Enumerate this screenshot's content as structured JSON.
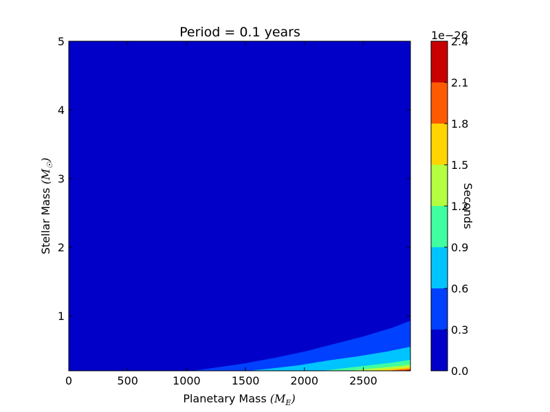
{
  "chart_data": {
    "type": "heatmap",
    "title": "Period = 0.1 years",
    "xlabel": {
      "text": "Planetary Mass ",
      "math": "(M",
      "sub": "E",
      "close": ")"
    },
    "ylabel": {
      "text": "Stellar Mass ",
      "math": "(M",
      "sub": "☉",
      "close": ")"
    },
    "xlim": [
      0,
      2900
    ],
    "ylim": [
      0.2,
      5
    ],
    "xticks": [
      0,
      500,
      1000,
      1500,
      2000,
      2500
    ],
    "xtick_labels": [
      "0",
      "500",
      "1000",
      "1500",
      "2000",
      "2500"
    ],
    "yticks": [
      1,
      2,
      3,
      4,
      5
    ],
    "ytick_labels": [
      "1",
      "2",
      "3",
      "4",
      "5"
    ],
    "levels": [
      0.0,
      0.3,
      0.6,
      0.9,
      1.2,
      1.5,
      1.8,
      2.1,
      2.4
    ],
    "level_labels": [
      "0.0",
      "0.3",
      "0.6",
      "0.9",
      "1.2",
      "1.5",
      "1.8",
      "2.1",
      "2.4"
    ],
    "colors": [
      "#0000c8",
      "#0040ff",
      "#00c4ff",
      "#40ffa0",
      "#b4ff40",
      "#ffd400",
      "#ff5a00",
      "#c80000"
    ],
    "colorbar_label": "Seconds",
    "colorbar_scale": "1e−26",
    "contour_boundaries": [
      {
        "level": 0.3,
        "points": [
          [
            1050,
            0.2
          ],
          [
            1300,
            0.26
          ],
          [
            1500,
            0.31
          ],
          [
            1750,
            0.39
          ],
          [
            2000,
            0.48
          ],
          [
            2250,
            0.59
          ],
          [
            2500,
            0.7
          ],
          [
            2750,
            0.83
          ],
          [
            2900,
            0.93
          ]
        ]
      },
      {
        "level": 0.6,
        "points": [
          [
            1520,
            0.2
          ],
          [
            1700,
            0.23
          ],
          [
            1950,
            0.28
          ],
          [
            2200,
            0.35
          ],
          [
            2450,
            0.41
          ],
          [
            2700,
            0.48
          ],
          [
            2900,
            0.55
          ]
        ]
      },
      {
        "level": 0.9,
        "points": [
          [
            2150,
            0.2
          ],
          [
            2350,
            0.24
          ],
          [
            2550,
            0.28
          ],
          [
            2750,
            0.32
          ],
          [
            2900,
            0.36
          ]
        ]
      },
      {
        "level": 1.2,
        "points": [
          [
            2380,
            0.2
          ],
          [
            2550,
            0.23
          ],
          [
            2750,
            0.26
          ],
          [
            2900,
            0.29
          ]
        ]
      },
      {
        "level": 1.5,
        "points": [
          [
            2550,
            0.2
          ],
          [
            2750,
            0.23
          ],
          [
            2900,
            0.25
          ]
        ]
      },
      {
        "level": 1.8,
        "points": [
          [
            2700,
            0.2
          ],
          [
            2820,
            0.22
          ],
          [
            2900,
            0.23
          ]
        ]
      },
      {
        "level": 2.1,
        "points": [
          [
            2820,
            0.2
          ],
          [
            2900,
            0.215
          ]
        ]
      }
    ]
  }
}
